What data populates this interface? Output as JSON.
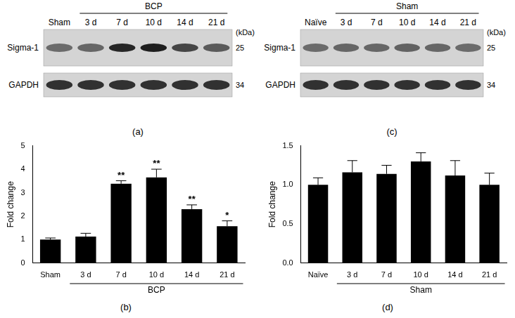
{
  "blots": [
    {
      "panel": "(a)",
      "group": "BCP",
      "lanes": [
        "Sham",
        "3 d",
        "7 d",
        "10 d",
        "14 d",
        "21 d"
      ],
      "unit": "(kDa)",
      "rows": [
        {
          "name": "Sigma-1",
          "kda": 25
        },
        {
          "name": "GAPDH",
          "kda": 34
        }
      ]
    },
    {
      "panel": "(c)",
      "group": "Sham",
      "lanes": [
        "Naïve",
        "3 d",
        "7 d",
        "10 d",
        "14 d",
        "21 d"
      ],
      "unit": "(kDa)",
      "rows": [
        {
          "name": "Sigma-1",
          "kda": 25
        },
        {
          "name": "GAPDH",
          "kda": 34
        }
      ]
    }
  ],
  "chart_data": [
    {
      "type": "bar",
      "panel": "(b)",
      "group": "BCP",
      "y_label": "Fold change",
      "categories": [
        "Sham",
        "3 d",
        "7 d",
        "10 d",
        "14 d",
        "21 d"
      ],
      "values": [
        1.0,
        1.13,
        3.38,
        3.65,
        2.3,
        1.57
      ],
      "errors": [
        0.07,
        0.14,
        0.13,
        0.35,
        0.18,
        0.23
      ],
      "annotations": [
        null,
        null,
        "**",
        "**",
        "**",
        "*"
      ],
      "color": "#000000",
      "ylim": [
        0,
        5
      ],
      "yticks": [
        0,
        1,
        2,
        3,
        4,
        5
      ],
      "grid": false
    },
    {
      "type": "bar",
      "panel": "(d)",
      "group": "Sham",
      "y_label": "Fold change",
      "categories": [
        "Naïve",
        "3 d",
        "7 d",
        "10 d",
        "14 d",
        "21 d"
      ],
      "values": [
        1.0,
        1.16,
        1.14,
        1.3,
        1.12,
        1.0
      ],
      "errors": [
        0.09,
        0.15,
        0.11,
        0.11,
        0.19,
        0.15
      ],
      "annotations": [
        null,
        null,
        null,
        null,
        null,
        null
      ],
      "color": "#000000",
      "ylim": [
        0,
        1.5
      ],
      "yticks": [
        {
          "value": 0,
          "label": "0.0"
        },
        {
          "value": 0.5,
          "label": "0.5"
        },
        {
          "value": 1,
          "label": "1.0"
        },
        {
          "value": 1.5,
          "label": "1.5"
        }
      ],
      "grid": false
    }
  ]
}
